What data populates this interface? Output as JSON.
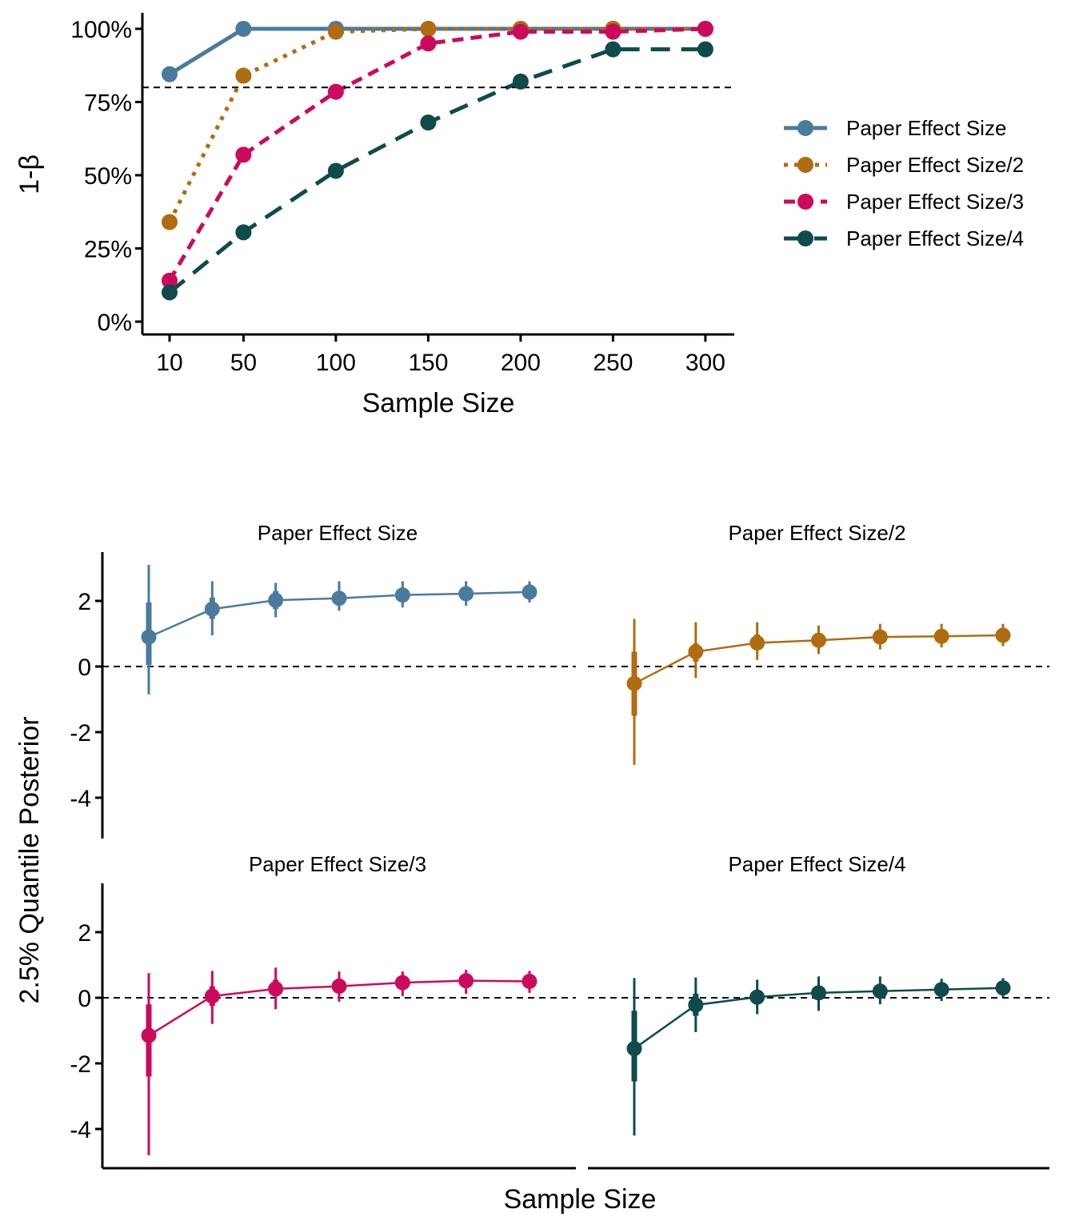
{
  "colors": {
    "s1": "#4a7b9d",
    "s2": "#b06c10",
    "s3": "#cc0a5b",
    "s4": "#0f4b4b"
  },
  "chart_data": [
    {
      "type": "line",
      "ylabel": "1-β",
      "xlabel": "Sample Size",
      "x_tick_labels": [
        "10",
        "50",
        "100",
        "150",
        "200",
        "250",
        "300"
      ],
      "y_tick_labels": [
        "0%",
        "25%",
        "50%",
        "75%",
        "100%"
      ],
      "x": [
        10,
        50,
        100,
        150,
        200,
        250,
        300
      ],
      "ylim": [
        0,
        100
      ],
      "threshold": 80,
      "legend_position": "right",
      "series": [
        {
          "name": "Paper Effect Size",
          "color_key": "s1",
          "line_style": "solid",
          "values": [
            84.5,
            100,
            100,
            100,
            100,
            100,
            100
          ]
        },
        {
          "name": "Paper Effect Size/2",
          "color_key": "s2",
          "line_style": "dotted",
          "values": [
            34,
            84,
            99,
            100,
            100,
            100,
            100
          ]
        },
        {
          "name": "Paper Effect Size/3",
          "color_key": "s3",
          "line_style": "dashed",
          "values": [
            14,
            57,
            78.5,
            95,
            99,
            99,
            100
          ]
        },
        {
          "name": "Paper Effect Size/4",
          "color_key": "s4",
          "line_style": "longdash",
          "values": [
            10,
            30.5,
            51.5,
            68,
            82,
            93,
            93
          ]
        }
      ]
    },
    {
      "type": "scatter",
      "ylabel": "2.5% Quantile Posterior",
      "xlabel": "Sample Size",
      "y_tick_labels": [
        "-4",
        "-2",
        "0",
        "2"
      ],
      "ylim": [
        -5.2,
        3.5
      ],
      "reference_line": 0,
      "x_index": [
        1,
        2,
        3,
        4,
        5,
        6,
        7
      ],
      "panels": [
        {
          "name": "Paper Effect Size",
          "color_key": "s1",
          "median": [
            0.9,
            1.75,
            2.02,
            2.08,
            2.18,
            2.22,
            2.27
          ],
          "inner_low": [
            0.05,
            1.45,
            1.75,
            1.92,
            2.02,
            2.08,
            2.13
          ],
          "inner_high": [
            1.95,
            2.1,
            2.3,
            2.28,
            2.38,
            2.4,
            2.42
          ],
          "outer_low": [
            -0.85,
            0.95,
            1.5,
            1.7,
            1.8,
            1.85,
            1.95
          ],
          "outer_high": [
            3.1,
            2.6,
            2.55,
            2.6,
            2.6,
            2.6,
            2.6
          ]
        },
        {
          "name": "Paper Effect Size/2",
          "color_key": "s2",
          "median": [
            -0.52,
            0.45,
            0.72,
            0.8,
            0.9,
            0.92,
            0.95
          ],
          "inner_low": [
            -1.5,
            0.15,
            0.5,
            0.62,
            0.72,
            0.75,
            0.8
          ],
          "inner_high": [
            0.45,
            0.7,
            0.98,
            1.0,
            1.08,
            1.1,
            1.12
          ],
          "outer_low": [
            -3.0,
            -0.35,
            0.2,
            0.38,
            0.52,
            0.58,
            0.62
          ],
          "outer_high": [
            1.45,
            1.35,
            1.35,
            1.25,
            1.3,
            1.3,
            1.3
          ]
        },
        {
          "name": "Paper Effect Size/3",
          "color_key": "s3",
          "median": [
            -1.15,
            0.05,
            0.27,
            0.35,
            0.46,
            0.52,
            0.5
          ],
          "inner_low": [
            -2.4,
            -0.25,
            0.05,
            0.15,
            0.28,
            0.32,
            0.33
          ],
          "inner_high": [
            -0.2,
            0.35,
            0.55,
            0.58,
            0.65,
            0.72,
            0.68
          ],
          "outer_low": [
            -4.8,
            -0.8,
            -0.35,
            -0.12,
            0.05,
            0.12,
            0.15
          ],
          "outer_high": [
            0.75,
            0.82,
            0.92,
            0.8,
            0.8,
            0.85,
            0.82
          ]
        },
        {
          "name": "Paper Effect Size/4",
          "color_key": "s4",
          "median": [
            -1.55,
            -0.22,
            0.02,
            0.15,
            0.2,
            0.25,
            0.3
          ],
          "inner_low": [
            -2.55,
            -0.55,
            -0.18,
            -0.05,
            0.03,
            0.08,
            0.13
          ],
          "inner_high": [
            -0.4,
            0.12,
            0.22,
            0.35,
            0.38,
            0.42,
            0.45
          ],
          "outer_low": [
            -4.2,
            -1.05,
            -0.5,
            -0.4,
            -0.2,
            -0.1,
            0.02
          ],
          "outer_high": [
            0.6,
            0.62,
            0.55,
            0.65,
            0.65,
            0.58,
            0.6
          ]
        }
      ]
    }
  ]
}
